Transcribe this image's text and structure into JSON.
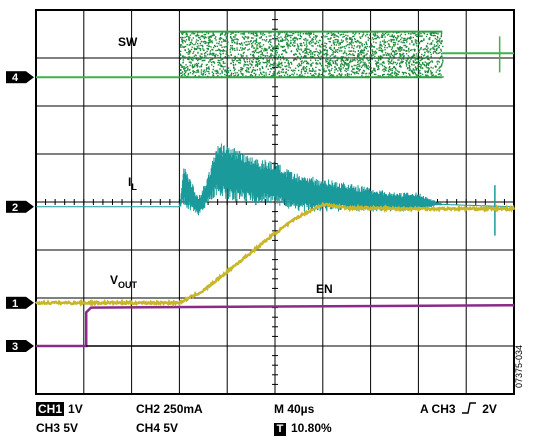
{
  "chart_data": {
    "type": "line",
    "title": "",
    "xlabel": "",
    "ylabel": "",
    "divisions": {
      "x": 10,
      "y": 8
    },
    "grid": true,
    "series": [
      {
        "name": "SW",
        "channel": "4",
        "color": "#1e8a3c",
        "marker_div": 6.6
      },
      {
        "name": "IL",
        "channel": "2",
        "color": "#1a9a9a",
        "marker_div": 3.9
      },
      {
        "name": "VOUT",
        "channel": "1",
        "color": "#c8b62a",
        "marker_div": 1.9
      },
      {
        "name": "EN",
        "channel": "3",
        "color": "#8a2a8a",
        "marker_div": 1.0
      }
    ],
    "traces": {
      "sw": {
        "low_div": 6.6,
        "high_div": 7.55,
        "burst_start_div": 3.0,
        "burst_end_div": 8.5,
        "settle_div": 7.1
      },
      "il": {
        "x_div": [
          0,
          3.0,
          3.1,
          3.4,
          3.6,
          3.8,
          4.0,
          4.3,
          4.6,
          5.0,
          5.4,
          6.0,
          6.5,
          7.0,
          7.5,
          8.0,
          8.5,
          10.0
        ],
        "center_div": [
          3.9,
          3.9,
          4.35,
          3.9,
          4.25,
          4.7,
          4.6,
          4.55,
          4.45,
          4.4,
          4.2,
          4.15,
          4.1,
          4.05,
          4.0,
          4.0,
          3.95,
          3.9
        ],
        "ripple_div": [
          0,
          0,
          0.45,
          0.2,
          0.3,
          0.55,
          0.6,
          0.55,
          0.5,
          0.45,
          0.4,
          0.35,
          0.3,
          0.25,
          0.2,
          0.2,
          0,
          0
        ]
      },
      "vout": {
        "x_div": [
          0,
          3.0,
          3.5,
          4.0,
          4.5,
          5.0,
          5.5,
          6.0,
          6.5,
          7.0,
          8.0,
          9.0,
          10.0
        ],
        "y_div": [
          1.9,
          1.9,
          2.15,
          2.55,
          2.95,
          3.35,
          3.7,
          3.95,
          3.88,
          3.87,
          3.86,
          3.86,
          3.86
        ]
      },
      "en": {
        "low_div": 1.0,
        "step_div": 1.05,
        "high_div": 1.8
      }
    },
    "labels": {
      "sw": "SW",
      "il_main": "I",
      "il_sub": "L",
      "vout_main": "V",
      "vout_sub": "OUT",
      "en": "EN"
    }
  },
  "footer": {
    "ch1_box": "CH1",
    "ch1_scale": "1V",
    "ch2": "CH2 250mA",
    "timebase": "M 40µs",
    "trigger_prefix": "A  CH3",
    "trigger_level": "2V",
    "ch3": "CH3 5V",
    "ch4": "CH4 5V",
    "t_box": "T",
    "t_position": "10.80%"
  },
  "figure_id": "07375-034"
}
